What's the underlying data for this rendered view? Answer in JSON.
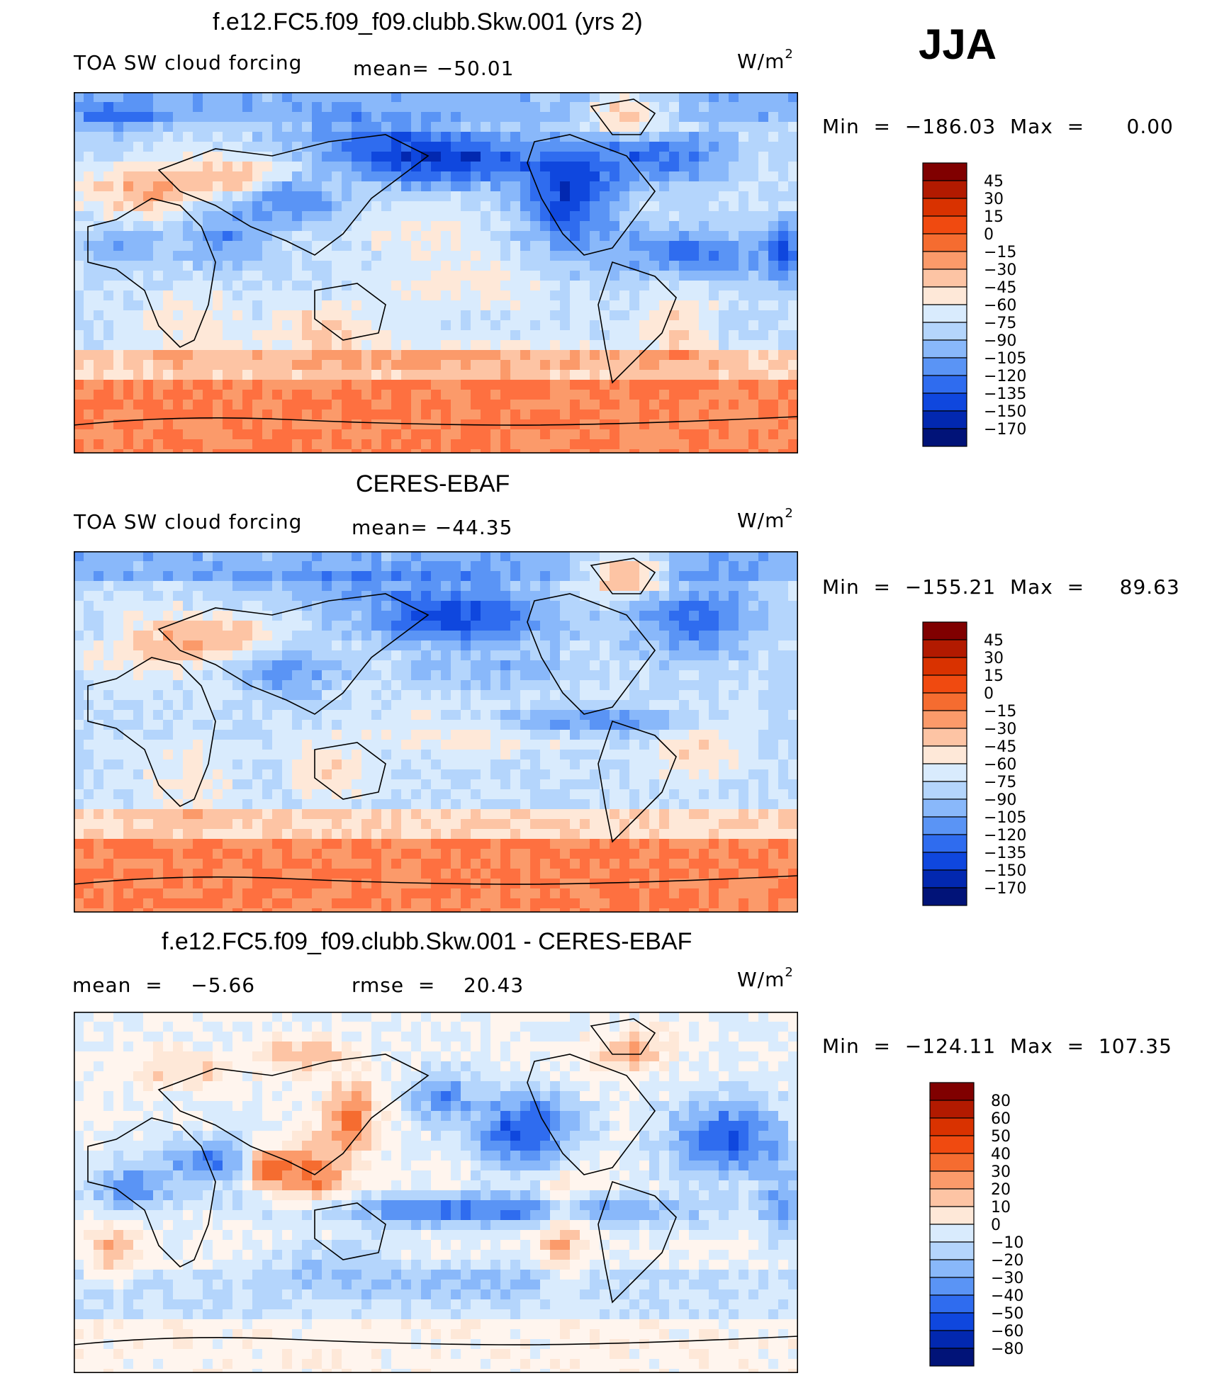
{
  "season": "JJA",
  "units_base": "W/m",
  "units_exp": "2",
  "panels": [
    {
      "title": "f.e12.FC5.f09_f09.clubb.Skw.001 (yrs 2)",
      "variable": "TOA SW cloud forcing",
      "stat1": "mean= −50.01",
      "stat2": "",
      "minmax": "Min  =  −186.03  Max  =      0.00",
      "colorbar": {
        "labels": [
          "45",
          "30",
          "15",
          "0",
          "−15",
          "−30",
          "−45",
          "−60",
          "−75",
          "−90",
          "−105",
          "−120",
          "−135",
          "−150",
          "−170"
        ],
        "colors": [
          "#800000",
          "#b21a00",
          "#d93200",
          "#f04a10",
          "#f56c30",
          "#fb9a6a",
          "#fdc4a4",
          "#fee8d8",
          "#d9ebfd",
          "#b4d5fc",
          "#89b8fa",
          "#5a94f5",
          "#2f6cef",
          "#0f47de",
          "#0228b0",
          "#011378"
        ]
      },
      "map_palette": [
        "#fe7040",
        "#fb9a6a",
        "#fdc4a4",
        "#fee8d8",
        "#d9ebfd",
        "#b4d5fc",
        "#89b8fa",
        "#5a94f5",
        "#2f6cef",
        "#0f47de",
        "#0228b0"
      ]
    },
    {
      "title": "CERES-EBAF",
      "variable": "TOA SW cloud forcing",
      "stat1": "mean= −44.35",
      "stat2": "",
      "minmax": "Min  =  −155.21  Max  =     89.63",
      "colorbar": {
        "labels": [
          "45",
          "30",
          "15",
          "0",
          "−15",
          "−30",
          "−45",
          "−60",
          "−75",
          "−90",
          "−105",
          "−120",
          "−135",
          "−150",
          "−170"
        ],
        "colors": [
          "#800000",
          "#b21a00",
          "#d93200",
          "#f04a10",
          "#f56c30",
          "#fb9a6a",
          "#fdc4a4",
          "#fee8d8",
          "#d9ebfd",
          "#b4d5fc",
          "#89b8fa",
          "#5a94f5",
          "#2f6cef",
          "#0f47de",
          "#0228b0",
          "#011378"
        ]
      },
      "map_palette": [
        "#fe7040",
        "#fb9a6a",
        "#fdc4a4",
        "#fee8d8",
        "#d9ebfd",
        "#b4d5fc",
        "#89b8fa",
        "#5a94f5",
        "#2f6cef",
        "#0f47de",
        "#0228b0"
      ]
    },
    {
      "title": "f.e12.FC5.f09_f09.clubb.Skw.001 - CERES-EBAF",
      "variable": "",
      "stat1": "mean  =    −5.66",
      "stat2": "rmse  =    20.43",
      "minmax": "Min  =  −124.11  Max  =  107.35",
      "colorbar": {
        "labels": [
          "80",
          "60",
          "50",
          "40",
          "30",
          "20",
          "10",
          "0",
          "−10",
          "−20",
          "−30",
          "−40",
          "−50",
          "−60",
          "−80"
        ],
        "colors": [
          "#800000",
          "#b21a00",
          "#d93200",
          "#f04a10",
          "#f56c30",
          "#fb9a6a",
          "#fdc4a4",
          "#fee8d8",
          "#d9ebfd",
          "#b4d5fc",
          "#89b8fa",
          "#5a94f5",
          "#2f6cef",
          "#0f47de",
          "#0228b0",
          "#011378"
        ]
      },
      "map_palette": [
        "#d93200",
        "#f56c30",
        "#fb9a6a",
        "#fdc4a4",
        "#fee8d8",
        "#fff5ee",
        "#d9ebfd",
        "#b4d5fc",
        "#89b8fa",
        "#5a94f5",
        "#2f6cef",
        "#0f47de"
      ]
    }
  ]
}
